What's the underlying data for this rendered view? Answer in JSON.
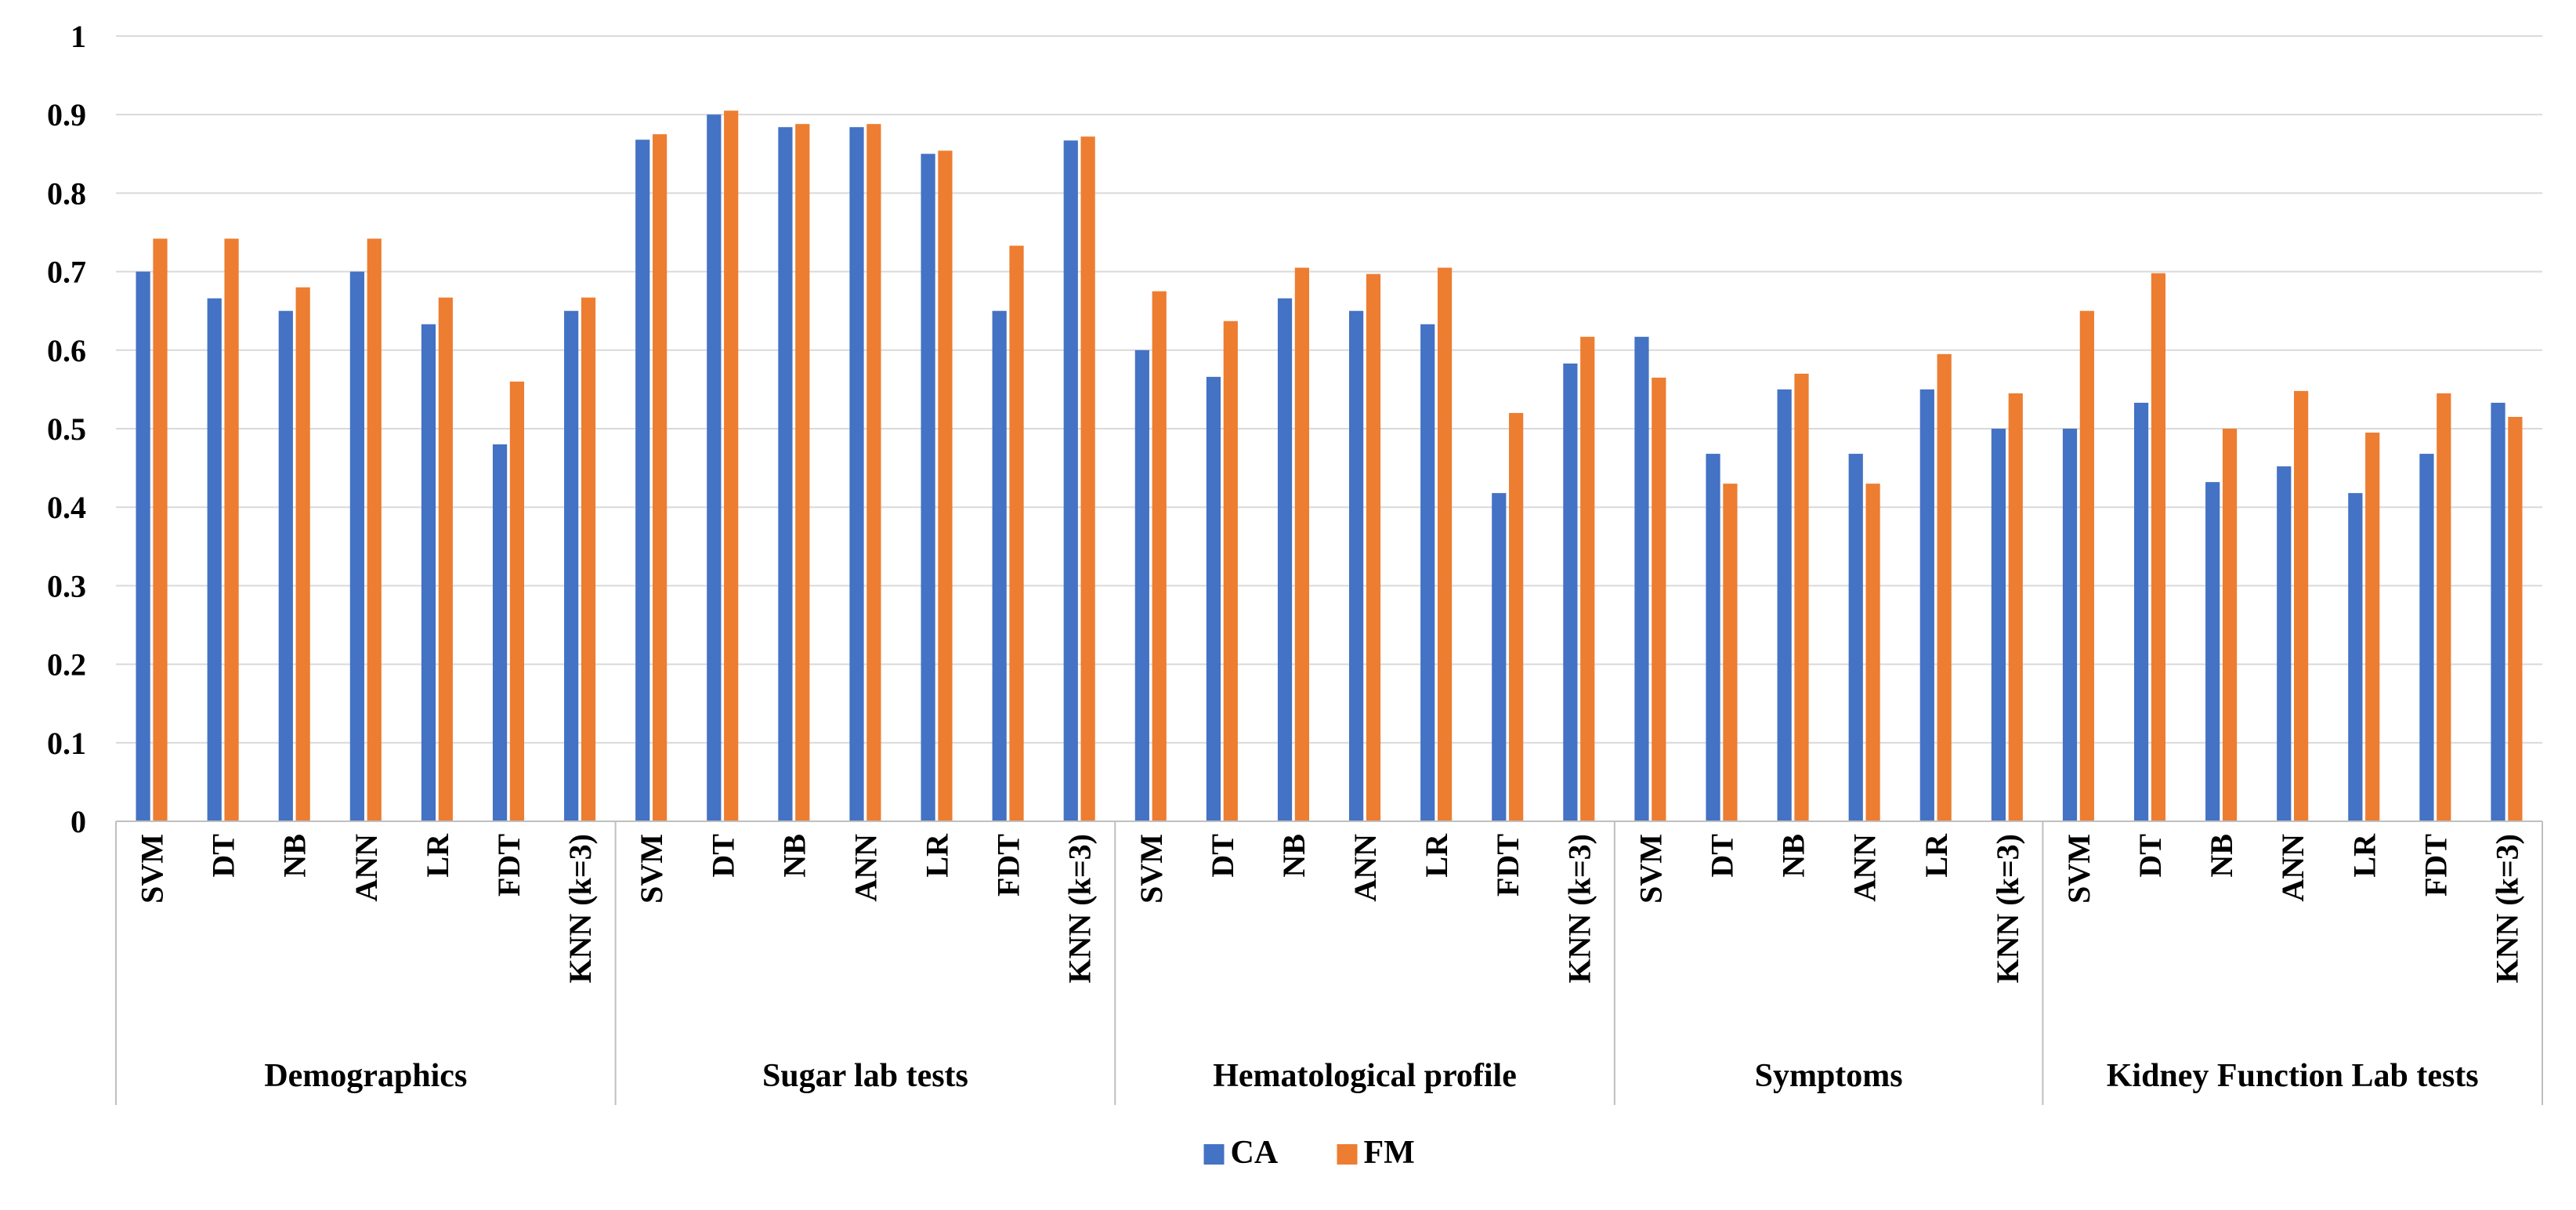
{
  "chart_data": {
    "type": "bar",
    "title": "",
    "xlabel": "",
    "ylabel": "",
    "ylim": [
      0,
      1
    ],
    "yticks": [
      "0",
      "0.1",
      "0.2",
      "0.3",
      "0.4",
      "0.5",
      "0.6",
      "0.7",
      "0.8",
      "0.9",
      "1"
    ],
    "grid": true,
    "legend_position": "bottom-center",
    "groups": [
      {
        "name": "Demographics",
        "categories": [
          "SVM",
          "DT",
          "NB",
          "ANN",
          "LR",
          "FDT",
          "KNN (k=3)"
        ],
        "series": [
          {
            "name": "CA",
            "values": [
              0.7,
              0.666,
              0.65,
              0.7,
              0.633,
              0.48,
              0.65
            ]
          },
          {
            "name": "FM",
            "values": [
              0.742,
              0.742,
              0.68,
              0.742,
              0.667,
              0.56,
              0.667
            ]
          }
        ]
      },
      {
        "name": "Sugar lab tests",
        "categories": [
          "SVM",
          "DT",
          "NB",
          "ANN",
          "LR",
          "FDT",
          "KNN (k=3)"
        ],
        "series": [
          {
            "name": "CA",
            "values": [
              0.868,
              0.9,
              0.884,
              0.884,
              0.85,
              0.65,
              0.867
            ]
          },
          {
            "name": "FM",
            "values": [
              0.875,
              0.905,
              0.888,
              0.888,
              0.854,
              0.733,
              0.872
            ]
          }
        ]
      },
      {
        "name": "Hematological profile",
        "categories": [
          "SVM",
          "DT",
          "NB",
          "ANN",
          "LR",
          "FDT",
          "KNN (k=3)"
        ],
        "series": [
          {
            "name": "CA",
            "values": [
              0.6,
              0.566,
              0.666,
              0.65,
              0.633,
              0.418,
              0.583
            ]
          },
          {
            "name": "FM",
            "values": [
              0.675,
              0.637,
              0.705,
              0.697,
              0.705,
              0.52,
              0.617
            ]
          }
        ]
      },
      {
        "name": "Symptoms",
        "categories": [
          "SVM",
          "DT",
          "NB",
          "ANN",
          "LR",
          "KNN (k=3)"
        ],
        "series": [
          {
            "name": "CA",
            "values": [
              0.617,
              0.468,
              0.55,
              0.468,
              0.55,
              0.5
            ]
          },
          {
            "name": "FM",
            "values": [
              0.565,
              0.43,
              0.57,
              0.43,
              0.595,
              0.545
            ]
          }
        ]
      },
      {
        "name": "Kidney Function Lab tests",
        "categories": [
          "SVM",
          "DT",
          "NB",
          "ANN",
          "LR",
          "FDT",
          "KNN (k=3)"
        ],
        "series": [
          {
            "name": "CA",
            "values": [
              0.5,
              0.533,
              0.432,
              0.452,
              0.418,
              0.468,
              0.533
            ]
          },
          {
            "name": "FM",
            "values": [
              0.65,
              0.698,
              0.5,
              0.548,
              0.495,
              0.545,
              0.515
            ]
          }
        ]
      }
    ],
    "legend": [
      {
        "name": "CA",
        "color": "#4472C4"
      },
      {
        "name": "FM",
        "color": "#ED7D31"
      }
    ]
  }
}
